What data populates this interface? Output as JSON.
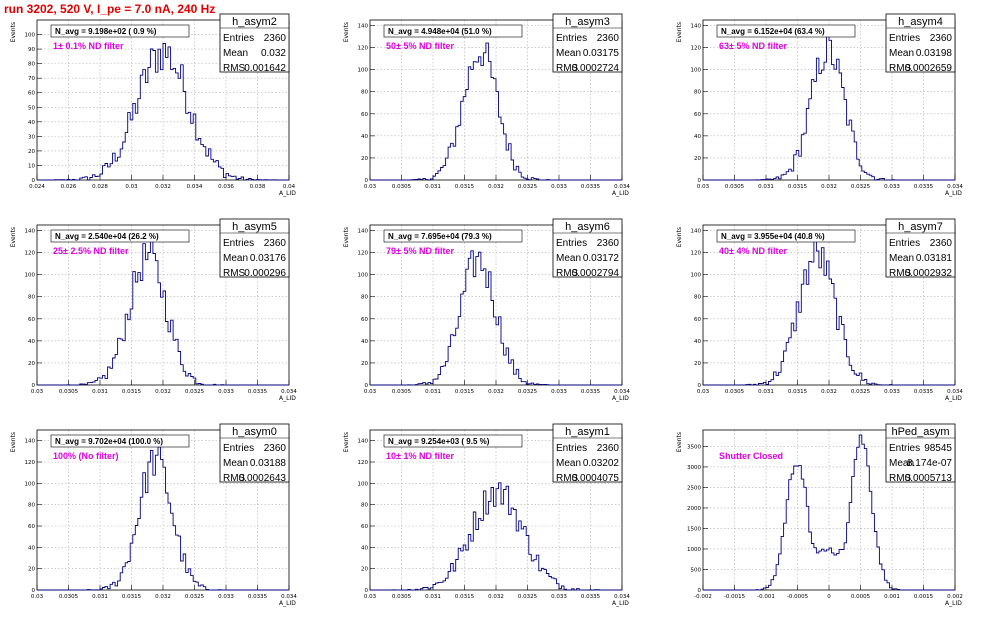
{
  "header": {
    "run_title": "run 3202,   520 V, I_pe = 7.0 nA, 240 Hz"
  },
  "colors": {
    "histogram_line": "#00007f",
    "annotation": "#e000e0",
    "title": "#e00000",
    "grid": "#b0b0b0"
  },
  "chart_data": [
    {
      "type": "histogram",
      "name": "h_asym2",
      "ylabel": "Events",
      "xlabel": "A_LID",
      "xlim": [
        0.024,
        0.04
      ],
      "ylim": [
        0,
        110
      ],
      "yticks": [
        0,
        10,
        20,
        30,
        40,
        50,
        60,
        70,
        80,
        90,
        100
      ],
      "xtick_labels": [
        "0.024",
        "0.026",
        "0.028",
        "0.03",
        "0.032",
        "0.034",
        "0.036",
        "0.038",
        "0.04"
      ],
      "grid": true,
      "legend": "top-right",
      "stats": {
        "Entries": "2360",
        "Mean": "0.032",
        "RMS": "0.001642"
      },
      "n_avg": "N_avg = 9.198e+02 ( 0.9 %)",
      "note": "1± 0.1% ND filter",
      "hist": {
        "mean": 0.032,
        "rms": 0.001642,
        "peak": 105,
        "entries": 2360
      }
    },
    {
      "type": "histogram",
      "name": "h_asym3",
      "ylabel": "Events",
      "xlabel": "A_LID",
      "xlim": [
        0.03,
        0.034
      ],
      "ylim": [
        0,
        145
      ],
      "yticks": [
        0,
        20,
        40,
        60,
        80,
        100,
        120,
        140
      ],
      "xtick_labels": [
        "0.03",
        "0.0305",
        "0.031",
        "0.0315",
        "0.032",
        "0.0325",
        "0.033",
        "0.0335",
        "0.034"
      ],
      "grid": true,
      "legend": "top-right",
      "stats": {
        "Entries": "2360",
        "Mean": "0.03175",
        "RMS": "0.0002724"
      },
      "n_avg": "N_avg = 4.948e+04 (51.0 %)",
      "note": "50± 5% ND filter",
      "hist": {
        "mean": 0.03175,
        "rms": 0.0002724,
        "peak": 140,
        "entries": 2360
      }
    },
    {
      "type": "histogram",
      "name": "h_asym4",
      "ylabel": "Events",
      "xlabel": "A_LID",
      "xlim": [
        0.03,
        0.034
      ],
      "ylim": [
        0,
        145
      ],
      "yticks": [
        0,
        20,
        40,
        60,
        80,
        100,
        120,
        140
      ],
      "xtick_labels": [
        "0.03",
        "0.0305",
        "0.031",
        "0.0315",
        "0.032",
        "0.0325",
        "0.033",
        "0.0335",
        "0.034"
      ],
      "grid": true,
      "legend": "top-right",
      "stats": {
        "Entries": "2360",
        "Mean": "0.03198",
        "RMS": "0.0002659"
      },
      "n_avg": "N_avg = 6.152e+04 (63.4 %)",
      "note": "63± 5% ND filter",
      "hist": {
        "mean": 0.03198,
        "rms": 0.0002659,
        "peak": 140,
        "entries": 2360
      }
    },
    {
      "type": "histogram",
      "name": "h_asym5",
      "ylabel": "Events",
      "xlabel": "A_LID",
      "xlim": [
        0.03,
        0.034
      ],
      "ylim": [
        0,
        145
      ],
      "yticks": [
        0,
        20,
        40,
        60,
        80,
        100,
        120,
        140
      ],
      "xtick_labels": [
        "0.03",
        "0.0305",
        "0.031",
        "0.0315",
        "0.032",
        "0.0325",
        "0.033",
        "0.0335",
        "0.034"
      ],
      "grid": true,
      "legend": "top-right",
      "stats": {
        "Entries": "2360",
        "Mean": "0.03176",
        "RMS": "0.000296"
      },
      "n_avg": "N_avg = 2.540e+04 (26.2 %)",
      "note": "25± 2.5% ND filter",
      "hist": {
        "mean": 0.03176,
        "rms": 0.000296,
        "peak": 138,
        "entries": 2360
      }
    },
    {
      "type": "histogram",
      "name": "h_asym6",
      "ylabel": "Events",
      "xlabel": "A_LID",
      "xlim": [
        0.03,
        0.034
      ],
      "ylim": [
        0,
        145
      ],
      "yticks": [
        0,
        20,
        40,
        60,
        80,
        100,
        120,
        140
      ],
      "xtick_labels": [
        "0.03",
        "0.0305",
        "0.031",
        "0.0315",
        "0.032",
        "0.0325",
        "0.033",
        "0.0335",
        "0.034"
      ],
      "grid": true,
      "legend": "top-right",
      "stats": {
        "Entries": "2360",
        "Mean": "0.03172",
        "RMS": "0.0002794"
      },
      "n_avg": "N_avg = 7.695e+04 (79.3 %)",
      "note": "79± 5% ND filter",
      "hist": {
        "mean": 0.03172,
        "rms": 0.0002794,
        "peak": 135,
        "entries": 2360
      }
    },
    {
      "type": "histogram",
      "name": "h_asym7",
      "ylabel": "Events",
      "xlabel": "A_LID",
      "xlim": [
        0.03,
        0.034
      ],
      "ylim": [
        0,
        145
      ],
      "yticks": [
        0,
        20,
        40,
        60,
        80,
        100,
        120,
        140
      ],
      "xtick_labels": [
        "0.03",
        "0.0305",
        "0.031",
        "0.0315",
        "0.032",
        "0.0325",
        "0.033",
        "0.0335",
        "0.034"
      ],
      "grid": true,
      "legend": "top-right",
      "stats": {
        "Entries": "2360",
        "Mean": "0.03181",
        "RMS": "0.0002932"
      },
      "n_avg": "N_avg = 3.955e+04 (40.8 %)",
      "note": "40± 4% ND filter",
      "hist": {
        "mean": 0.03181,
        "rms": 0.0002932,
        "peak": 140,
        "entries": 2360
      }
    },
    {
      "type": "histogram",
      "name": "h_asym0",
      "ylabel": "Events",
      "xlabel": "A_LID",
      "xlim": [
        0.03,
        0.034
      ],
      "ylim": [
        0,
        150
      ],
      "yticks": [
        0,
        20,
        40,
        60,
        80,
        100,
        120,
        140
      ],
      "xtick_labels": [
        "0.03",
        "0.0305",
        "0.031",
        "0.0315",
        "0.032",
        "0.0325",
        "0.033",
        "0.0335",
        "0.034"
      ],
      "grid": true,
      "legend": "top-right",
      "stats": {
        "Entries": "2360",
        "Mean": "0.03188",
        "RMS": "0.0002643"
      },
      "n_avg": "N_avg = 9.702e+04 (100.0 %)",
      "note": "100% (No filter)",
      "hist": {
        "mean": 0.03188,
        "rms": 0.0002643,
        "peak": 145,
        "entries": 2360
      }
    },
    {
      "type": "histogram",
      "name": "h_asym1",
      "ylabel": "Events",
      "xlabel": "A_LID",
      "xlim": [
        0.03,
        0.034
      ],
      "ylim": [
        0,
        150
      ],
      "yticks": [
        0,
        20,
        40,
        60,
        80,
        100,
        120,
        140
      ],
      "xtick_labels": [
        "0.03",
        "0.0305",
        "0.031",
        "0.0315",
        "0.032",
        "0.0325",
        "0.033",
        "0.0335",
        "0.034"
      ],
      "grid": true,
      "legend": "top-right",
      "stats": {
        "Entries": "2360",
        "Mean": "0.03202",
        "RMS": "0.0004075"
      },
      "n_avg": "N_avg = 9.254e+03 ( 9.5 %)",
      "note": "10± 1% ND filter",
      "hist": {
        "mean": 0.03202,
        "rms": 0.0004075,
        "peak": 110,
        "entries": 2360
      }
    },
    {
      "type": "histogram",
      "name": "hPed_asym",
      "ylabel": "Events",
      "xlabel": "A_LID",
      "xlim": [
        -0.002,
        0.002
      ],
      "ylim": [
        0,
        3900
      ],
      "yticks": [
        0,
        500,
        1000,
        1500,
        2000,
        2500,
        3000,
        3500
      ],
      "xtick_labels": [
        "-0.002",
        "-0.0015",
        "-0.001",
        "-0.0005",
        "0",
        "0.0005",
        "0.001",
        "0.0015",
        "0.002"
      ],
      "grid": true,
      "legend": "top-right",
      "stats": {
        "Entries": "98545",
        "Mean": "8.174e-07",
        "RMS": "0.0005713"
      },
      "n_avg": "",
      "note": "Shutter Closed",
      "hist": {
        "bimodal": true,
        "peaks": [
          -0.00051,
          0.00051
        ],
        "width": 0.00017,
        "peak": 3700,
        "valley": 950
      }
    }
  ]
}
